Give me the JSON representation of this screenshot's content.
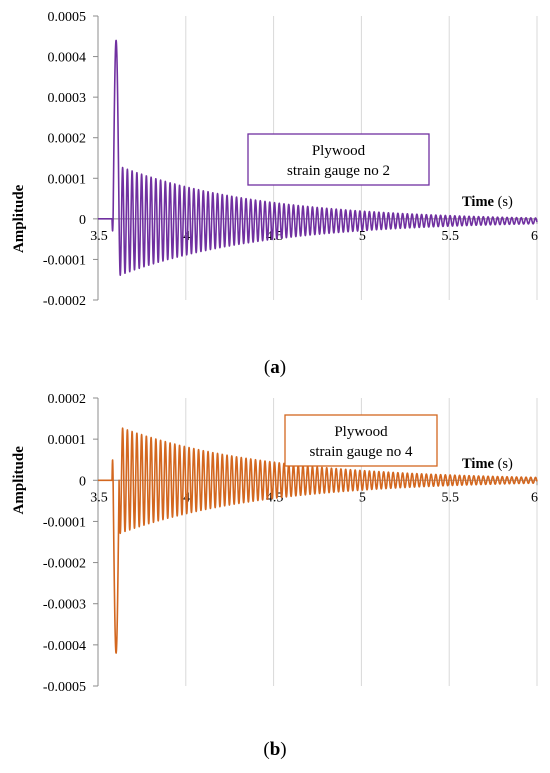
{
  "chart_data": [
    {
      "type": "line",
      "panel": "a",
      "caption_letter": "a",
      "xlabel_bold": "Time",
      "xlabel_unit": " (s)",
      "ylabel": "Amplitude",
      "xlim": [
        3.5,
        6
      ],
      "ylim": [
        -0.0002,
        0.0005
      ],
      "x_ticks": [
        "3.5",
        "4",
        "4.5",
        "5",
        "5.5",
        "6"
      ],
      "x_tick_values": [
        3.5,
        4,
        4.5,
        5,
        5.5,
        6
      ],
      "y_ticks": [
        "-0.0002",
        "-0.0001",
        "0",
        "0.0001",
        "0.0002",
        "0.0003",
        "0.0004",
        "0.0005"
      ],
      "y_tick_values": [
        -0.0002,
        -0.0001,
        0,
        0.0001,
        0.0002,
        0.0003,
        0.0004,
        0.0005
      ],
      "grid": "vertical",
      "legend_box": [
        "Plywood",
        "strain gauge no 2"
      ],
      "series": [
        {
          "color": "#7030A0",
          "signal": {
            "onset_s": 3.58,
            "initial_peak": 0.00044,
            "initial_trough": -3e-05,
            "decay_start_s": 3.62,
            "max_amplitude": 0.000135,
            "min_amplitude": -0.000135,
            "offset": -5e-06,
            "frequency_hz": 37,
            "end_amplitude": 7e-06,
            "end_s": 6.0
          }
        }
      ]
    },
    {
      "type": "line",
      "panel": "b",
      "caption_letter": "b",
      "xlabel_bold": "Time",
      "xlabel_unit": " (s)",
      "ylabel": "Amplitude",
      "xlim": [
        3.5,
        6
      ],
      "ylim": [
        -0.0005,
        0.0002
      ],
      "x_ticks": [
        "3.5",
        "4",
        "4.5",
        "5",
        "5.5",
        "6"
      ],
      "x_tick_values": [
        3.5,
        4,
        4.5,
        5,
        5.5,
        6
      ],
      "y_ticks": [
        "-0.0005",
        "-0.0004",
        "-0.0003",
        "-0.0002",
        "-0.0001",
        "0",
        "0.0001",
        "0.0002"
      ],
      "y_tick_values": [
        -0.0005,
        -0.0004,
        -0.0003,
        -0.0002,
        -0.0001,
        0,
        0.0001,
        0.0002
      ],
      "grid": "vertical",
      "legend_box": [
        "Plywood",
        "strain gauge no 4"
      ],
      "series": [
        {
          "color": "#D3671F",
          "signal": {
            "onset_s": 3.58,
            "initial_peak": 5e-05,
            "initial_trough": -0.00042,
            "decay_start_s": 3.62,
            "max_amplitude": 0.00013,
            "min_amplitude": -0.00013,
            "offset": 0.0,
            "frequency_hz": 37,
            "end_amplitude": 7e-06,
            "end_s": 6.0
          }
        }
      ]
    }
  ]
}
